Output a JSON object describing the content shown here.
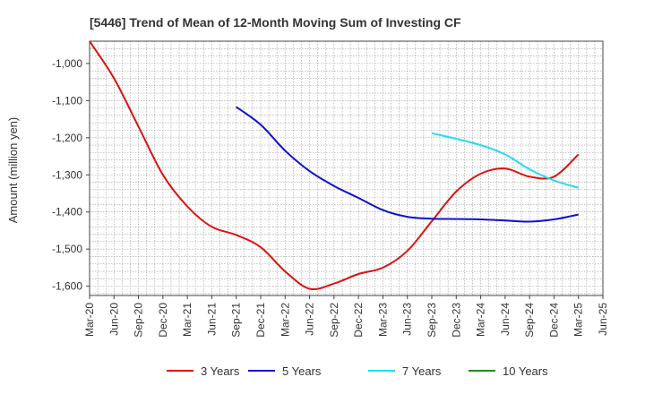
{
  "chart_data": {
    "type": "line",
    "title": "[5446]  Trend of Mean of 12-Month Moving Sum of Investing CF",
    "xlabel": "",
    "ylabel": "Amount (million yen)",
    "ylim": [
      -1625,
      -940
    ],
    "yticks": [
      -1000,
      -1100,
      -1200,
      -1300,
      -1400,
      -1500,
      -1600
    ],
    "ytick_labels": [
      "-1,000",
      "-1,100",
      "-1,200",
      "-1,300",
      "-1,400",
      "-1,500",
      "-1,600"
    ],
    "xticks": [
      "Mar-20",
      "Jun-20",
      "Sep-20",
      "Dec-20",
      "Mar-21",
      "Jun-21",
      "Sep-21",
      "Dec-21",
      "Mar-22",
      "Jun-22",
      "Sep-22",
      "Dec-22",
      "Mar-23",
      "Jun-23",
      "Sep-23",
      "Dec-23",
      "Mar-24",
      "Jun-24",
      "Sep-24",
      "Dec-24",
      "Mar-25",
      "Jun-25"
    ],
    "grid": true,
    "legend_position": "bottom",
    "series": [
      {
        "name": "3 Years",
        "color": "#dd1111",
        "x": [
          "Mar-20",
          "Jun-20",
          "Sep-20",
          "Dec-20",
          "Mar-21",
          "Jun-21",
          "Sep-21",
          "Dec-21",
          "Mar-22",
          "Jun-22",
          "Sep-22",
          "Dec-22",
          "Mar-23",
          "Jun-23",
          "Sep-23",
          "Dec-23",
          "Mar-24",
          "Jun-24",
          "Sep-24",
          "Dec-24",
          "Mar-25"
        ],
        "values": [
          -940,
          -1040,
          -1170,
          -1300,
          -1385,
          -1440,
          -1462,
          -1495,
          -1560,
          -1607,
          -1593,
          -1567,
          -1550,
          -1505,
          -1425,
          -1345,
          -1297,
          -1283,
          -1305,
          -1305,
          -1245
        ]
      },
      {
        "name": "5 Years",
        "color": "#1111cc",
        "x": [
          "Sep-21",
          "Dec-21",
          "Mar-22",
          "Jun-22",
          "Sep-22",
          "Dec-22",
          "Mar-23",
          "Jun-23",
          "Sep-23",
          "Dec-23",
          "Mar-24",
          "Jun-24",
          "Sep-24",
          "Dec-24",
          "Mar-25"
        ],
        "values": [
          -1117,
          -1165,
          -1235,
          -1290,
          -1330,
          -1362,
          -1395,
          -1413,
          -1418,
          -1419,
          -1420,
          -1423,
          -1426,
          -1420,
          -1407
        ]
      },
      {
        "name": "7 Years",
        "color": "#22ddee",
        "x": [
          "Sep-23",
          "Dec-23",
          "Mar-24",
          "Jun-24",
          "Sep-24",
          "Dec-24",
          "Mar-25"
        ],
        "values": [
          -1188,
          -1203,
          -1220,
          -1245,
          -1285,
          -1315,
          -1335
        ]
      },
      {
        "name": "10 Years",
        "color": "#228822",
        "x": [],
        "values": []
      }
    ]
  }
}
